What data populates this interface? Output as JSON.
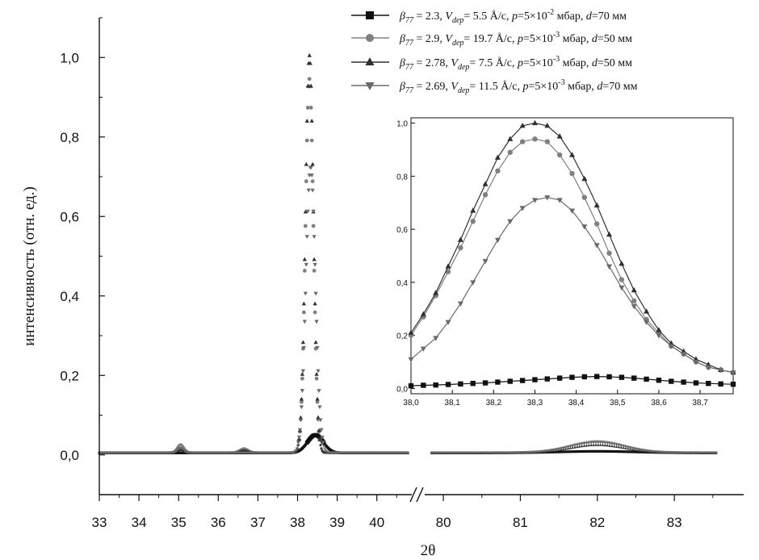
{
  "chart_data": {
    "type": "scatter",
    "xlabel": "2θ",
    "ylabel": "интенсивность (отн. ед.)",
    "x_break": [
      40.8,
      79.8
    ],
    "xlim_left": [
      33,
      40.8
    ],
    "xlim_right": [
      79.8,
      83.9
    ],
    "ylim": [
      -0.1,
      1.1
    ],
    "x_ticks_left": [
      "33",
      "34",
      "35",
      "36",
      "37",
      "38",
      "39",
      "40"
    ],
    "x_ticks_right": [
      "80",
      "81",
      "82",
      "83"
    ],
    "y_ticks": [
      "0,0",
      "0,2",
      "0,4",
      "0,6",
      "0,8",
      "1,0"
    ],
    "legend_position": "top-right",
    "series": [
      {
        "marker": "square",
        "color": "#111111",
        "legend": {
          "beta": "β",
          "beta_sub": "77",
          "beta_val": " = 2.3,  ",
          "v": "V",
          "v_sub": "dep",
          "v_val": "= 5.5 Å/c, ",
          "p": "p",
          "p_val": "=5×10",
          "p_exp": "-2",
          "p_unit": " мбар, ",
          "d": "d",
          "d_val": "=70 мм"
        },
        "peaks_main": [
          [
            38.45,
            0.045,
            0.2
          ],
          [
            82.0,
            0.004,
            0.5
          ]
        ],
        "baseline": 0.005,
        "inset_points": [
          [
            38.0,
            0.01
          ],
          [
            38.03,
            0.012
          ],
          [
            38.06,
            0.013
          ],
          [
            38.09,
            0.015
          ],
          [
            38.12,
            0.017
          ],
          [
            38.15,
            0.019
          ],
          [
            38.18,
            0.021
          ],
          [
            38.21,
            0.024
          ],
          [
            38.24,
            0.027
          ],
          [
            38.27,
            0.03
          ],
          [
            38.3,
            0.033
          ],
          [
            38.33,
            0.036
          ],
          [
            38.36,
            0.039
          ],
          [
            38.39,
            0.042
          ],
          [
            38.42,
            0.044
          ],
          [
            38.45,
            0.045
          ],
          [
            38.48,
            0.044
          ],
          [
            38.51,
            0.042
          ],
          [
            38.54,
            0.039
          ],
          [
            38.57,
            0.035
          ],
          [
            38.6,
            0.031
          ],
          [
            38.63,
            0.027
          ],
          [
            38.66,
            0.024
          ],
          [
            38.69,
            0.021
          ],
          [
            38.72,
            0.019
          ],
          [
            38.75,
            0.017
          ],
          [
            38.78,
            0.016
          ]
        ]
      },
      {
        "marker": "circle",
        "color": "#808080",
        "legend": {
          "beta": "β",
          "beta_sub": "77",
          "beta_val": " = 2.9,  ",
          "v": "V",
          "v_sub": "dep",
          "v_val": "= 19.7 Å/c, ",
          "p": "p",
          "p_val": "=5×10",
          "p_exp": "-3",
          "p_unit": " мбар, ",
          "d": "d",
          "d_val": "=50 мм"
        },
        "peaks_main": [
          [
            38.3,
            0.94,
            0.1
          ],
          [
            35.05,
            0.02,
            0.08
          ],
          [
            36.65,
            0.01,
            0.1
          ],
          [
            82.0,
            0.028,
            0.35
          ]
        ],
        "baseline": 0.006,
        "inset_points": [
          [
            38.0,
            0.2
          ],
          [
            38.03,
            0.27
          ],
          [
            38.06,
            0.35
          ],
          [
            38.09,
            0.44
          ],
          [
            38.12,
            0.53
          ],
          [
            38.15,
            0.63
          ],
          [
            38.18,
            0.73
          ],
          [
            38.21,
            0.82
          ],
          [
            38.24,
            0.89
          ],
          [
            38.27,
            0.93
          ],
          [
            38.3,
            0.94
          ],
          [
            38.33,
            0.93
          ],
          [
            38.36,
            0.88
          ],
          [
            38.39,
            0.81
          ],
          [
            38.42,
            0.72
          ],
          [
            38.45,
            0.62
          ],
          [
            38.48,
            0.51
          ],
          [
            38.51,
            0.41
          ],
          [
            38.54,
            0.33
          ],
          [
            38.57,
            0.26
          ],
          [
            38.6,
            0.21
          ],
          [
            38.63,
            0.16
          ],
          [
            38.66,
            0.13
          ],
          [
            38.69,
            0.1
          ],
          [
            38.72,
            0.08
          ],
          [
            38.75,
            0.07
          ],
          [
            38.78,
            0.06
          ]
        ]
      },
      {
        "marker": "triangle-up",
        "color": "#303030",
        "legend": {
          "beta": "β",
          "beta_sub": "77",
          "beta_val": " = 2.78,  ",
          "v": "V",
          "v_sub": "dep",
          "v_val": "= 7.5 Å/c, ",
          "p": "p",
          "p_val": "=5×10",
          "p_exp": "-3",
          "p_unit": " мбар, ",
          "d": "d",
          "d_val": "=50 мм"
        },
        "peaks_main": [
          [
            38.3,
            1.0,
            0.1
          ],
          [
            35.05,
            0.008,
            0.08
          ],
          [
            36.65,
            0.006,
            0.1
          ],
          [
            82.0,
            0.02,
            0.35
          ]
        ],
        "baseline": 0.005,
        "inset_points": [
          [
            38.0,
            0.21
          ],
          [
            38.03,
            0.28
          ],
          [
            38.06,
            0.36
          ],
          [
            38.09,
            0.46
          ],
          [
            38.12,
            0.56
          ],
          [
            38.15,
            0.67
          ],
          [
            38.18,
            0.77
          ],
          [
            38.21,
            0.87
          ],
          [
            38.24,
            0.94
          ],
          [
            38.27,
            0.99
          ],
          [
            38.3,
            1.0
          ],
          [
            38.33,
            0.99
          ],
          [
            38.36,
            0.95
          ],
          [
            38.39,
            0.88
          ],
          [
            38.42,
            0.79
          ],
          [
            38.45,
            0.69
          ],
          [
            38.48,
            0.58
          ],
          [
            38.51,
            0.47
          ],
          [
            38.54,
            0.37
          ],
          [
            38.57,
            0.29
          ],
          [
            38.6,
            0.22
          ],
          [
            38.63,
            0.17
          ],
          [
            38.66,
            0.14
          ],
          [
            38.69,
            0.11
          ],
          [
            38.72,
            0.09
          ],
          [
            38.75,
            0.07
          ],
          [
            38.78,
            0.06
          ]
        ]
      },
      {
        "marker": "triangle-down",
        "color": "#6a6a6a",
        "legend": {
          "beta": "β",
          "beta_sub": "77",
          "beta_val": " = 2.69,  ",
          "v": "V",
          "v_sub": "dep",
          "v_val": "= 11.5 Å/c, ",
          "p": "p",
          "p_val": "=5×10",
          "p_exp": "-3",
          "p_unit": " мбар, ",
          "d": "d",
          "d_val": "=70 мм"
        },
        "peaks_main": [
          [
            38.33,
            0.72,
            0.12
          ],
          [
            35.05,
            0.012,
            0.08
          ],
          [
            82.0,
            0.025,
            0.35
          ]
        ],
        "baseline": 0.006,
        "inset_points": [
          [
            38.0,
            0.11
          ],
          [
            38.03,
            0.15
          ],
          [
            38.06,
            0.19
          ],
          [
            38.09,
            0.25
          ],
          [
            38.12,
            0.32
          ],
          [
            38.15,
            0.4
          ],
          [
            38.18,
            0.48
          ],
          [
            38.21,
            0.56
          ],
          [
            38.24,
            0.63
          ],
          [
            38.27,
            0.68
          ],
          [
            38.3,
            0.71
          ],
          [
            38.33,
            0.72
          ],
          [
            38.36,
            0.71
          ],
          [
            38.39,
            0.67
          ],
          [
            38.42,
            0.61
          ],
          [
            38.45,
            0.54
          ],
          [
            38.48,
            0.46
          ],
          [
            38.51,
            0.38
          ],
          [
            38.54,
            0.31
          ],
          [
            38.57,
            0.25
          ],
          [
            38.6,
            0.2
          ],
          [
            38.63,
            0.16
          ],
          [
            38.66,
            0.13
          ],
          [
            38.69,
            0.1
          ],
          [
            38.72,
            0.08
          ],
          [
            38.75,
            0.07
          ],
          [
            38.78,
            0.06
          ]
        ]
      }
    ],
    "inset": {
      "xlim": [
        38.0,
        38.78
      ],
      "ylim": [
        -0.02,
        1.02
      ],
      "x_ticks": [
        "38,0",
        "38,1",
        "38,2",
        "38,3",
        "38,4",
        "38,5",
        "38,6",
        "38,7"
      ],
      "y_ticks": [
        "0,0",
        "0,2",
        "0,4",
        "0,6",
        "0,8",
        "1,0"
      ]
    }
  }
}
